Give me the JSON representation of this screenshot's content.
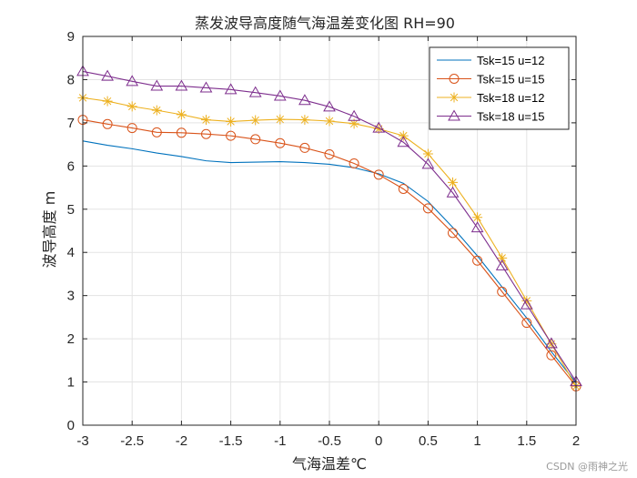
{
  "chart_data": {
    "type": "line",
    "title": "蒸发波导高度随气海温差变化图 RH=90",
    "xlabel": "气海温差℃",
    "ylabel": "波导高度 m",
    "xlim": [
      -3,
      2
    ],
    "ylim": [
      0,
      9
    ],
    "xticks": [
      -3,
      -2.5,
      -2,
      -1.5,
      -1,
      -0.5,
      0,
      0.5,
      1,
      1.5,
      2
    ],
    "xtick_labels": [
      "-3",
      "-2.5",
      "-2",
      "-1.5",
      "-1",
      "-0.5",
      "0",
      "0.5",
      "1",
      "1.5",
      "2"
    ],
    "yticks": [
      0,
      1,
      2,
      3,
      4,
      5,
      6,
      7,
      8,
      9
    ],
    "ytick_labels": [
      "0",
      "1",
      "2",
      "3",
      "4",
      "5",
      "6",
      "7",
      "8",
      "9"
    ],
    "grid": true,
    "legend_position": "top-right",
    "x": [
      -3,
      -2.75,
      -2.5,
      -2.25,
      -2,
      -1.75,
      -1.5,
      -1.25,
      -1,
      -0.75,
      -0.5,
      -0.25,
      0,
      0.25,
      0.5,
      0.75,
      1,
      1.25,
      1.5,
      1.75,
      2
    ],
    "series": [
      {
        "name": "Tsk=15 u=12",
        "color": "#0072BD",
        "marker": "none",
        "values": [
          6.58,
          6.48,
          6.4,
          6.3,
          6.22,
          6.12,
          6.08,
          6.09,
          6.1,
          6.08,
          6.04,
          5.96,
          5.82,
          5.6,
          5.18,
          4.58,
          3.92,
          3.2,
          2.48,
          1.7,
          0.98
        ]
      },
      {
        "name": "Tsk=15 u=15",
        "color": "#D95319",
        "marker": "circle",
        "values": [
          7.07,
          6.97,
          6.88,
          6.78,
          6.77,
          6.74,
          6.7,
          6.62,
          6.53,
          6.42,
          6.27,
          6.06,
          5.8,
          5.47,
          5.02,
          4.45,
          3.81,
          3.09,
          2.37,
          1.62,
          0.9
        ]
      },
      {
        "name": "Tsk=18 u=12",
        "color": "#EDB120",
        "marker": "star",
        "values": [
          7.58,
          7.5,
          7.38,
          7.29,
          7.19,
          7.07,
          7.03,
          7.06,
          7.08,
          7.07,
          7.04,
          6.98,
          6.86,
          6.7,
          6.28,
          5.62,
          4.81,
          3.87,
          2.88,
          1.88,
          0.9
        ]
      },
      {
        "name": "Tsk=18 u=15",
        "color": "#7E2F8E",
        "marker": "triangle",
        "values": [
          8.19,
          8.08,
          7.96,
          7.85,
          7.85,
          7.81,
          7.77,
          7.7,
          7.62,
          7.52,
          7.37,
          7.15,
          6.88,
          6.55,
          6.04,
          5.38,
          4.57,
          3.69,
          2.79,
          1.89,
          1.01
        ]
      }
    ]
  },
  "watermark": "CSDN @雨神之光"
}
